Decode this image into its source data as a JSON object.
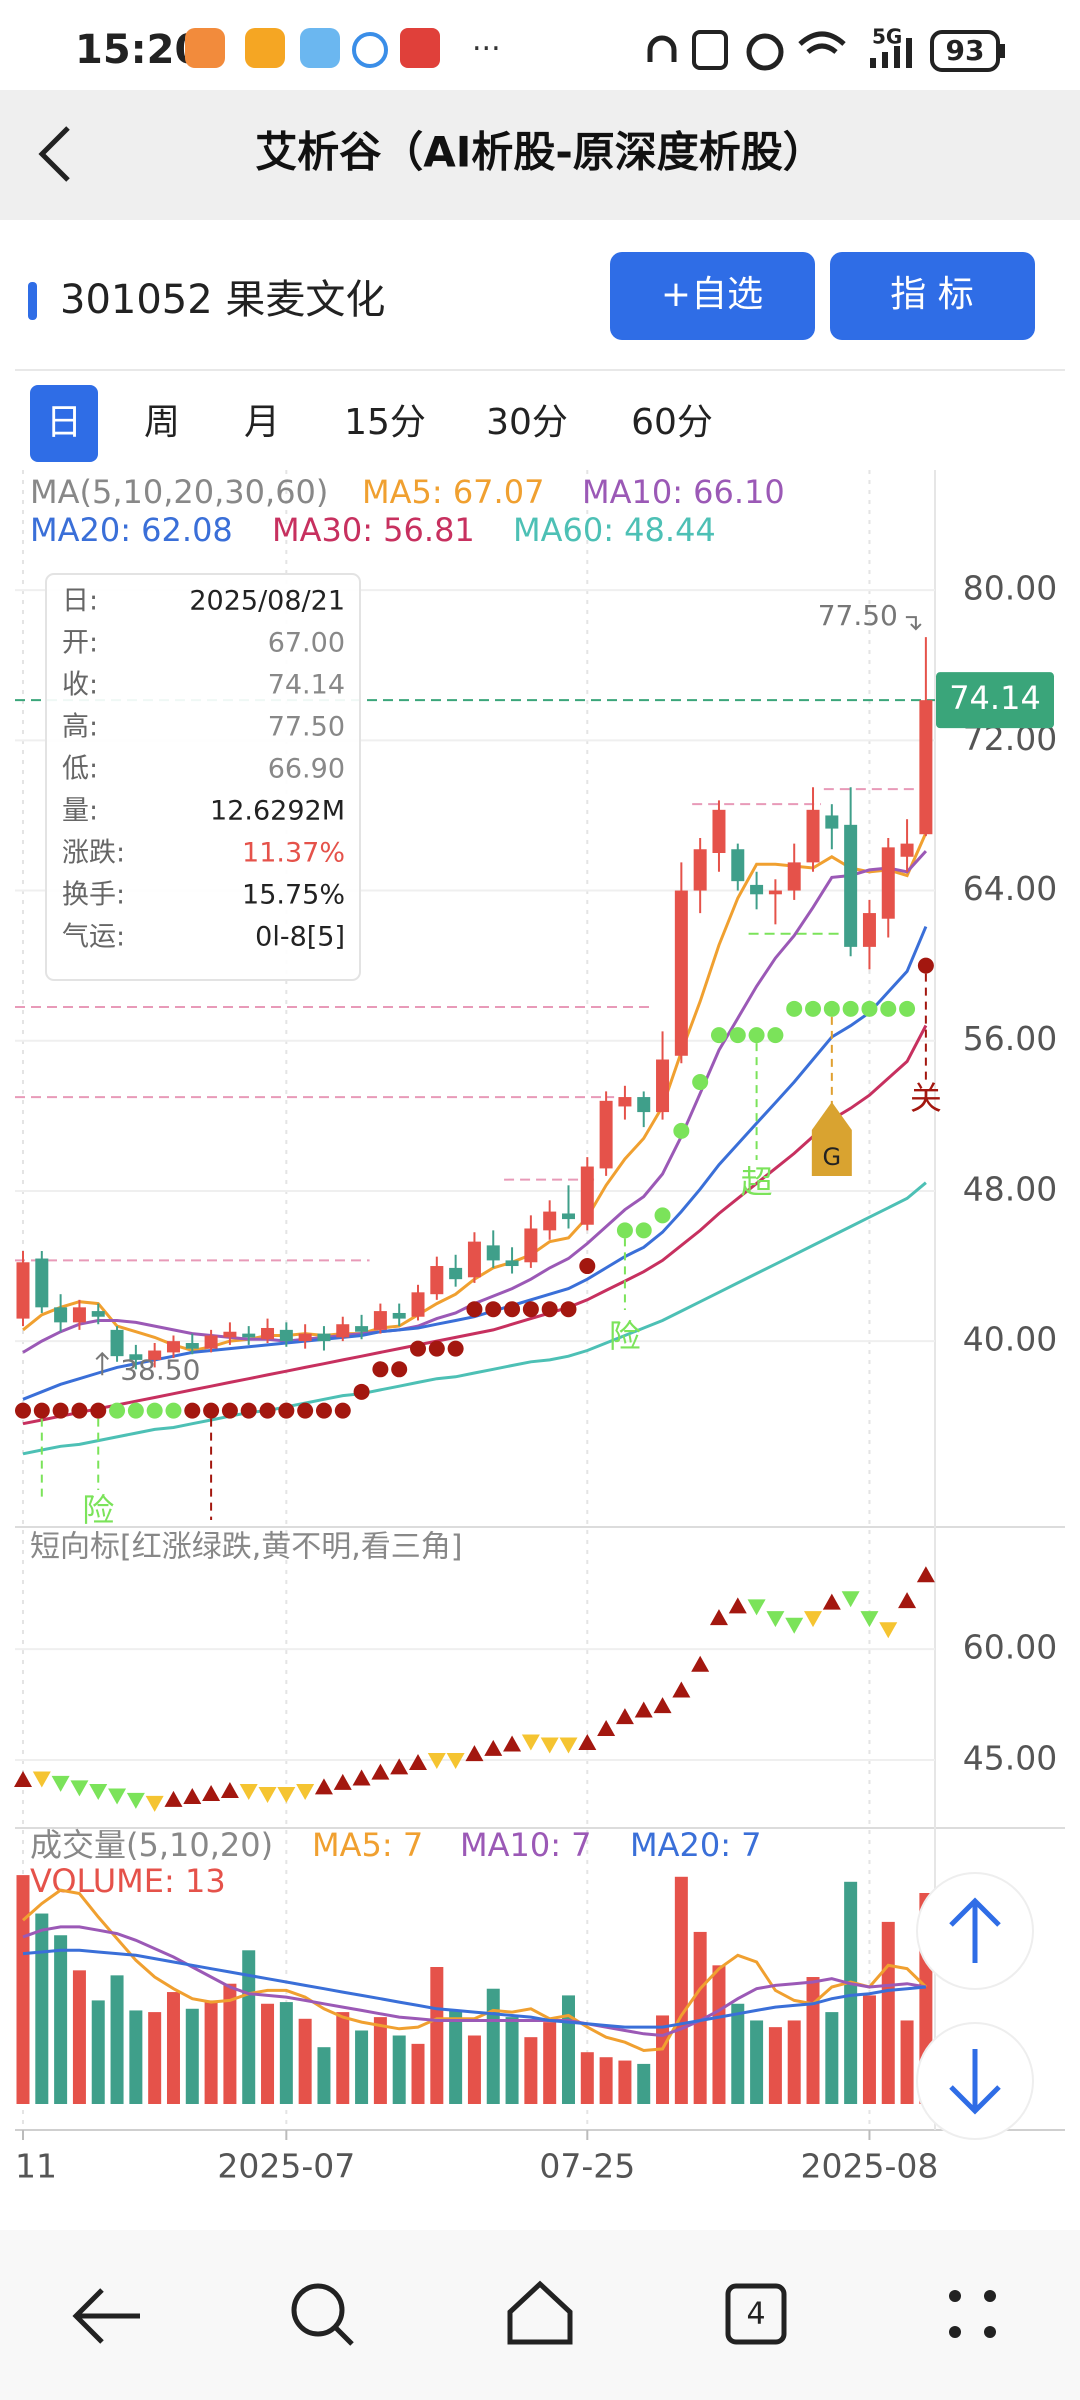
{
  "status_bar": {
    "time": "15:20",
    "network": "5G",
    "battery": "93"
  },
  "header": {
    "title": "艾析谷（AI析股-原深度析股）"
  },
  "stock": {
    "code_name": "301052 果麦文化"
  },
  "buttons": [
    "+自选",
    "指 标"
  ],
  "tabs": [
    "日",
    "周",
    "月",
    "15分",
    "30分",
    "60分"
  ],
  "tooltip": {
    "rows": [
      [
        "日:",
        "2025/08/21"
      ],
      [
        "开:",
        "67.00"
      ],
      [
        "收:",
        "74.14"
      ],
      [
        "高:",
        "77.50"
      ],
      [
        "低:",
        "66.90"
      ],
      [
        "量:",
        "12.6292M"
      ],
      [
        "涨跌:",
        "11.37%"
      ],
      [
        "换手:",
        "15.75%"
      ],
      [
        "气运:",
        "0l-8[5]"
      ]
    ]
  },
  "nav": {
    "tabs_count": "4"
  },
  "chart_data": [
    {
      "type": "candlestick",
      "legend_title": "MA(5,10,20,30,60)",
      "categories": [
        "11",
        null,
        null,
        null,
        null,
        null,
        null,
        null,
        null,
        null,
        null,
        null,
        null,
        null,
        "2025-07",
        null,
        null,
        null,
        null,
        null,
        null,
        null,
        null,
        null,
        null,
        null,
        null,
        null,
        null,
        null,
        "07-25",
        null,
        null,
        null,
        null,
        null,
        null,
        null,
        null,
        null,
        null,
        null,
        null,
        null,
        null,
        "2025-08",
        null,
        null,
        null
      ],
      "open": [
        41.2,
        44.4,
        41.8,
        41.0,
        41.6,
        40.6,
        39.3,
        39.0,
        39.4,
        39.9,
        39.6,
        40.2,
        40.4,
        40.1,
        40.6,
        40.0,
        40.4,
        40.2,
        40.8,
        40.6,
        41.5,
        41.3,
        42.5,
        43.9,
        43.4,
        45.1,
        44.3,
        44.2,
        45.9,
        46.8,
        46.2,
        49.2,
        52.5,
        53.0,
        52.2,
        55.2,
        64.0,
        66.0,
        66.2,
        64.3,
        63.8,
        64.0,
        65.5,
        68.0,
        67.5,
        61.0,
        62.5,
        65.8,
        67.0
      ],
      "close": [
        44.2,
        41.8,
        41.0,
        41.8,
        41.3,
        39.2,
        39.0,
        39.5,
        40.0,
        39.6,
        40.3,
        40.5,
        40.2,
        40.7,
        40.0,
        40.4,
        40.0,
        40.9,
        40.5,
        41.6,
        41.2,
        42.6,
        44.0,
        43.3,
        45.3,
        44.3,
        44.0,
        46.0,
        46.9,
        46.5,
        49.3,
        52.8,
        53.0,
        52.2,
        55.0,
        64.0,
        66.2,
        68.3,
        64.5,
        63.8,
        64.0,
        65.5,
        68.3,
        67.3,
        61.0,
        62.8,
        66.3,
        66.5,
        74.14
      ],
      "high": [
        44.8,
        44.8,
        42.5,
        42.2,
        42.0,
        40.8,
        39.8,
        39.9,
        40.3,
        40.4,
        40.6,
        41.0,
        40.8,
        41.2,
        41.0,
        40.9,
        40.8,
        41.3,
        41.4,
        42.0,
        42.0,
        43.0,
        44.5,
        44.6,
        45.8,
        45.9,
        45.0,
        46.7,
        47.5,
        48.3,
        49.8,
        53.3,
        53.6,
        53.3,
        56.5,
        65.5,
        66.8,
        68.8,
        66.5,
        65.0,
        64.6,
        66.5,
        69.5,
        68.6,
        69.5,
        63.5,
        66.8,
        67.8,
        77.5
      ],
      "low": [
        40.8,
        41.5,
        40.5,
        40.6,
        40.9,
        38.9,
        38.5,
        38.6,
        39.1,
        39.3,
        39.4,
        39.8,
        39.8,
        39.9,
        39.7,
        39.6,
        39.5,
        40.0,
        40.1,
        40.4,
        40.8,
        41.1,
        42.2,
        42.9,
        43.1,
        43.9,
        43.6,
        43.9,
        45.4,
        46.0,
        45.9,
        48.8,
        51.8,
        51.4,
        51.8,
        54.8,
        62.8,
        65.0,
        64.0,
        63.0,
        62.2,
        63.5,
        65.0,
        66.2,
        60.5,
        59.8,
        61.5,
        65.0,
        66.9
      ],
      "up_color": "#e5524a",
      "down_color": "#3f9f8a",
      "series": [
        {
          "name": "MA5: 67.07",
          "color": "#f0a030",
          "values": [
            40.6,
            41.4,
            41.8,
            42.1,
            42.0,
            40.8,
            40.5,
            40.2,
            39.8,
            39.5,
            39.7,
            40.0,
            40.1,
            40.3,
            40.3,
            40.4,
            40.3,
            40.4,
            40.4,
            40.7,
            40.8,
            41.4,
            42.0,
            42.5,
            43.3,
            43.9,
            44.2,
            44.6,
            45.3,
            45.5,
            46.6,
            48.3,
            49.7,
            50.8,
            52.5,
            55.4,
            58.1,
            61.1,
            63.6,
            65.4,
            65.4,
            65.3,
            65.2,
            65.8,
            65.2,
            65.0,
            65.1,
            64.8,
            67.07
          ]
        },
        {
          "name": "MA10: 66.10",
          "color": "#9b59b6",
          "values": [
            39.4,
            40.0,
            40.5,
            40.9,
            41.1,
            41.1,
            41.0,
            40.8,
            40.6,
            40.4,
            40.3,
            40.2,
            40.1,
            40.1,
            40.0,
            40.1,
            40.2,
            40.3,
            40.4,
            40.5,
            40.6,
            40.8,
            41.2,
            41.5,
            42.0,
            42.4,
            42.8,
            43.3,
            43.9,
            44.4,
            45.2,
            46.1,
            47.0,
            47.7,
            48.9,
            50.9,
            53.2,
            55.5,
            57.2,
            58.9,
            60.4,
            61.6,
            63.1,
            64.7,
            64.8,
            65.1,
            65.2,
            65.0,
            66.1
          ]
        },
        {
          "name": "MA20: 62.08",
          "color": "#3a6fd8",
          "values": [
            36.9,
            37.3,
            37.7,
            38.0,
            38.3,
            38.6,
            38.8,
            39.0,
            39.2,
            39.4,
            39.5,
            39.6,
            39.7,
            39.8,
            39.9,
            40.0,
            40.1,
            40.2,
            40.3,
            40.5,
            40.6,
            40.7,
            40.9,
            41.1,
            41.3,
            41.6,
            41.9,
            42.2,
            42.5,
            42.8,
            43.3,
            43.9,
            44.5,
            45.0,
            45.8,
            46.9,
            48.1,
            49.4,
            50.5,
            51.6,
            52.7,
            53.8,
            55.0,
            56.2,
            56.8,
            57.5,
            58.6,
            59.7,
            62.08
          ]
        },
        {
          "name": "MA30: 56.81",
          "color": "#c7305f",
          "values": [
            35.6,
            35.8,
            36.0,
            36.2,
            36.4,
            36.6,
            36.8,
            37.0,
            37.2,
            37.4,
            37.6,
            37.8,
            38.0,
            38.2,
            38.4,
            38.6,
            38.8,
            39.0,
            39.2,
            39.4,
            39.6,
            39.8,
            40.0,
            40.2,
            40.4,
            40.6,
            40.9,
            41.2,
            41.5,
            41.8,
            42.2,
            42.7,
            43.2,
            43.7,
            44.3,
            45.1,
            45.9,
            46.8,
            47.6,
            48.4,
            49.2,
            50.0,
            50.9,
            51.8,
            52.4,
            53.1,
            54.0,
            54.9,
            56.81
          ]
        },
        {
          "name": "MA60: 48.44",
          "color": "#4dc0b5",
          "values": [
            34.0,
            34.2,
            34.4,
            34.5,
            34.7,
            34.9,
            35.1,
            35.3,
            35.4,
            35.6,
            35.8,
            36.0,
            36.2,
            36.3,
            36.5,
            36.7,
            36.9,
            37.1,
            37.2,
            37.4,
            37.6,
            37.8,
            38.0,
            38.1,
            38.3,
            38.5,
            38.7,
            38.9,
            39.0,
            39.2,
            39.5,
            39.9,
            40.3,
            40.7,
            41.1,
            41.6,
            42.1,
            42.6,
            43.1,
            43.6,
            44.1,
            44.6,
            45.1,
            45.6,
            46.1,
            46.6,
            47.1,
            47.6,
            48.44
          ]
        }
      ],
      "dots": [
        {
          "color": "#a3170f",
          "values": [
            36.3,
            36.3,
            36.3,
            36.3,
            36.3,
            null,
            null,
            null,
            null,
            36.3,
            36.3,
            36.3,
            36.3,
            36.3,
            36.3,
            36.3,
            36.3,
            36.3,
            37.3,
            38.5,
            38.5,
            39.6,
            39.6,
            39.6,
            41.7,
            41.7,
            41.7,
            41.7,
            41.7,
            41.7,
            44.0,
            null,
            null,
            null,
            null,
            null,
            null,
            null,
            null,
            null,
            null,
            null,
            null,
            null,
            null,
            null,
            null,
            null,
            60.0
          ]
        },
        {
          "color": "#7be35a",
          "values": [
            null,
            null,
            null,
            null,
            null,
            36.3,
            36.3,
            36.3,
            36.3,
            null,
            null,
            null,
            null,
            null,
            null,
            null,
            null,
            null,
            null,
            null,
            null,
            null,
            null,
            null,
            null,
            null,
            null,
            null,
            null,
            null,
            null,
            null,
            45.9,
            45.9,
            46.7,
            51.2,
            53.8,
            56.3,
            56.3,
            56.3,
            56.3,
            57.7,
            57.7,
            57.7,
            57.7,
            57.7,
            57.7,
            57.7,
            null
          ]
        }
      ],
      "levels": [
        57.8,
        53.0,
        44.3,
        48.6,
        68.6,
        69.4,
        61.7
      ],
      "annotations": [
        "险",
        "险",
        "超",
        "G",
        "关"
      ],
      "last_price": {
        "value": 74.14,
        "label": "74.14"
      },
      "high_mark": {
        "value": 77.5,
        "label": "77.50"
      },
      "low_mark": {
        "value": 38.5,
        "label": "38.50"
      },
      "ylim": [
        30.1,
        86.4
      ],
      "yticks": [
        {
          "value": 80,
          "label": "80.00"
        },
        {
          "value": 72,
          "label": "72.00"
        },
        {
          "value": 64,
          "label": "64.00"
        },
        {
          "value": 56,
          "label": "56.00"
        },
        {
          "value": 48,
          "label": "48.00"
        },
        {
          "value": 40,
          "label": "40.00"
        }
      ],
      "grid": true
    },
    {
      "type": "triangle",
      "title": "短向标[红涨绿跌,黄不明,看三角]",
      "values": [
        42.3,
        42.5,
        41.9,
        41.3,
        40.8,
        40.2,
        39.6,
        39.2,
        39.6,
        40.0,
        40.4,
        40.8,
        40.8,
        40.4,
        40.4,
        40.8,
        41.3,
        41.9,
        42.5,
        43.3,
        44.0,
        44.6,
        45.0,
        45.0,
        45.8,
        46.5,
        47.1,
        47.5,
        47.1,
        47.1,
        47.3,
        49.2,
        50.8,
        51.7,
        52.3,
        54.4,
        57.9,
        64.2,
        65.8,
        65.8,
        64.2,
        63.3,
        64.2,
        66.3,
        66.9,
        64.2,
        62.7,
        66.5,
        70.0
      ],
      "markers": [
        "up",
        "flat",
        "down",
        "down",
        "down",
        "down",
        "down",
        "flat",
        "up",
        "up",
        "up",
        "up",
        "flat",
        "flat",
        "flat",
        "flat",
        "up",
        "up",
        "up",
        "up",
        "up",
        "up",
        "flat",
        "flat",
        "up",
        "up",
        "up",
        "flat",
        "flat",
        "flat",
        "up",
        "up",
        "up",
        "up",
        "up",
        "up",
        "up",
        "up",
        "up",
        "down",
        "down",
        "down",
        "flat",
        "up",
        "down",
        "down",
        "flat",
        "up",
        "up"
      ],
      "colors": {
        "up": "#a3170f",
        "down": "#7be35a",
        "flat": "#f5c431"
      },
      "ylim": [
        35.8,
        76.4
      ],
      "yticks": [
        {
          "value": 60,
          "label": "60.00"
        },
        {
          "value": 45,
          "label": "45.00"
        }
      ]
    },
    {
      "type": "bar",
      "title": "成交量(5,10,20)",
      "value_title": "VOLUME: 13",
      "values": [
        13.7,
        11.4,
        10.1,
        8.0,
        6.2,
        7.7,
        5.6,
        5.5,
        6.7,
        5.7,
        6.2,
        7.2,
        9.2,
        6.0,
        6.1,
        5.1,
        3.4,
        5.5,
        4.4,
        5.2,
        4.1,
        3.6,
        8.2,
        5.6,
        4.1,
        6.9,
        5.2,
        4.0,
        4.9,
        6.5,
        3.1,
        2.8,
        2.6,
        2.4,
        5.3,
        13.6,
        10.3,
        8.3,
        6.0,
        5.0,
        4.6,
        5.0,
        7.6,
        5.5,
        13.3,
        6.5,
        10.9,
        5.0,
        12.6292
      ],
      "series": [
        {
          "name": "MA5: 7",
          "color": "#f0a030",
          "values": [
            11.0,
            12.0,
            12.8,
            12.6,
            11.2,
            9.9,
            8.6,
            7.6,
            6.9,
            6.3,
            6.1,
            6.2,
            6.6,
            6.8,
            6.8,
            6.4,
            5.7,
            5.2,
            4.9,
            4.7,
            4.5,
            4.6,
            5.1,
            5.1,
            5.1,
            5.6,
            5.5,
            5.7,
            5.1,
            5.3,
            4.6,
            4.0,
            3.7,
            3.2,
            3.3,
            5.3,
            6.9,
            8.1,
            8.9,
            8.5,
            6.8,
            6.2,
            6.0,
            7.0,
            7.3,
            7.0,
            8.3,
            8.1,
            7.0
          ]
        },
        {
          "name": "MA10: 7",
          "color": "#9b59b6",
          "values": [
            10.0,
            10.4,
            10.6,
            10.6,
            10.4,
            10.2,
            9.8,
            9.3,
            8.8,
            8.2,
            7.6,
            7.0,
            6.6,
            6.5,
            6.4,
            6.2,
            6.0,
            5.8,
            5.6,
            5.4,
            5.2,
            5.1,
            5.0,
            5.0,
            5.0,
            5.0,
            5.0,
            5.0,
            5.0,
            5.0,
            4.8,
            4.6,
            4.4,
            4.2,
            4.1,
            4.5,
            5.0,
            5.6,
            6.3,
            6.9,
            7.1,
            7.2,
            7.3,
            7.5,
            7.2,
            7.0,
            7.1,
            7.2,
            7.0
          ]
        },
        {
          "name": "MA20: 7",
          "color": "#3a6fd8",
          "values": [
            9.0,
            9.1,
            9.2,
            9.2,
            9.1,
            9.0,
            8.9,
            8.7,
            8.5,
            8.3,
            8.1,
            7.9,
            7.7,
            7.5,
            7.3,
            7.1,
            6.9,
            6.7,
            6.5,
            6.3,
            6.1,
            5.9,
            5.7,
            5.6,
            5.5,
            5.4,
            5.3,
            5.2,
            5.0,
            4.9,
            4.8,
            4.7,
            4.6,
            4.6,
            4.6,
            4.8,
            5.0,
            5.2,
            5.4,
            5.6,
            5.8,
            5.9,
            6.0,
            6.3,
            6.5,
            6.6,
            6.8,
            6.9,
            7.0
          ]
        }
      ],
      "ylim": [
        0,
        16.4
      ]
    }
  ]
}
